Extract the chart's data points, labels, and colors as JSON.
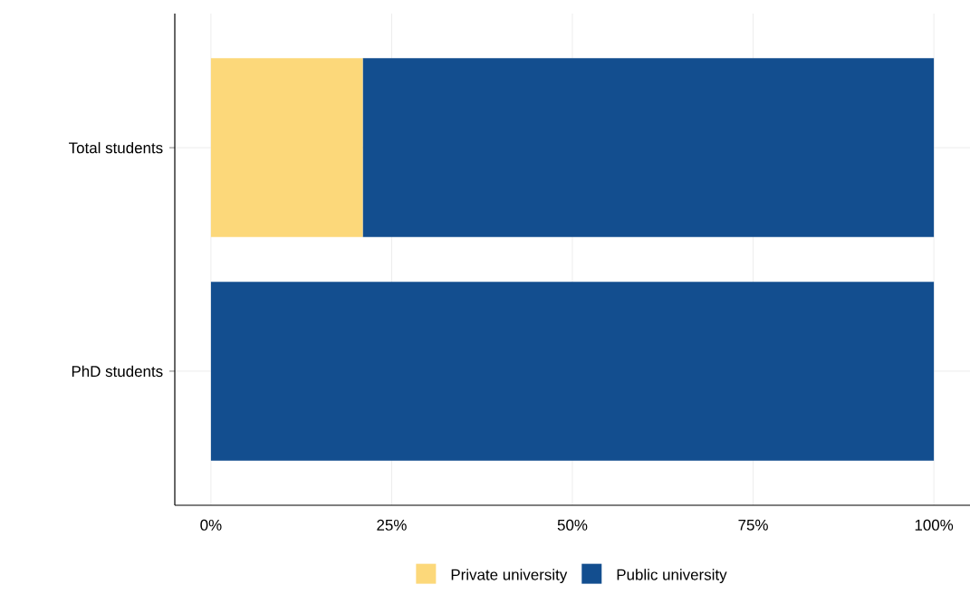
{
  "chart_data": {
    "type": "bar",
    "orientation": "horizontal",
    "stacked": true,
    "categories": [
      "Total students",
      "PhD students"
    ],
    "series": [
      {
        "name": "Private university",
        "color": "#fcd87a",
        "values": [
          21,
          0
        ]
      },
      {
        "name": "Public university",
        "color": "#134e8f",
        "values": [
          79,
          100
        ]
      }
    ],
    "xlim": [
      -5,
      105
    ],
    "xticks": [
      {
        "value": 0,
        "label": "0%"
      },
      {
        "value": 25,
        "label": "25%"
      },
      {
        "value": 50,
        "label": "50%"
      },
      {
        "value": 75,
        "label": "75%"
      },
      {
        "value": 100,
        "label": "100%"
      }
    ],
    "grid": true,
    "legend": "bottom"
  }
}
